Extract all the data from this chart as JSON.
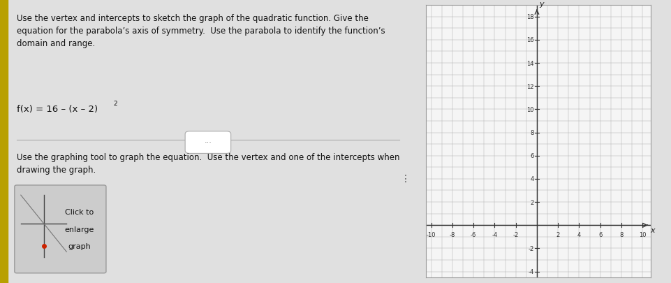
{
  "title_text": "Use the vertex and intercepts to sketch the graph of the quadratic function. Give the\nequation for the parabola’s axis of symmetry.  Use the parabola to identify the function’s\ndomain and range.",
  "function_text": "f(x) = 16 – (x – 2)",
  "superscript": "2",
  "instruction_text": "Use the graphing tool to graph the equation.  Use the vertex and one of the intercepts when\ndrawing the graph.",
  "button_label1": "Click to",
  "button_label2": "enlarge",
  "button_label3": "graph",
  "graph_bg": "#f5f5f5",
  "page_bg": "#e0e0e0",
  "grid_color": "#b0b0b0",
  "axis_color": "#333333",
  "xlim": [
    -10,
    10
  ],
  "ylim": [
    -4,
    18
  ],
  "xticks": [
    -10,
    -8,
    -6,
    -4,
    -2,
    2,
    4,
    6,
    8,
    10
  ],
  "yticks": [
    -4,
    -2,
    2,
    4,
    6,
    8,
    10,
    12,
    14,
    16,
    18
  ],
  "xlabel": "x",
  "ylabel": "y"
}
